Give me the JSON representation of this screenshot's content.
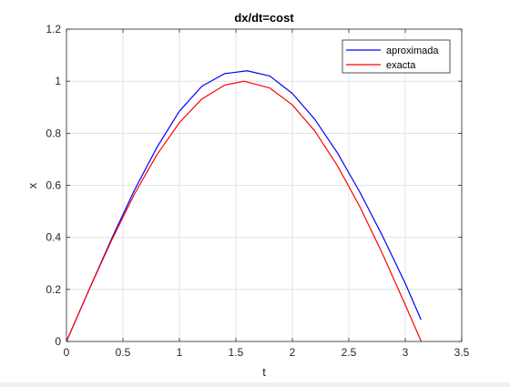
{
  "chart_data": {
    "type": "line",
    "title": "dx/dt=cost",
    "xlabel": "t",
    "ylabel": "x",
    "xlim": [
      0,
      3.5
    ],
    "ylim": [
      0,
      1.2
    ],
    "xticks": [
      0,
      0.5,
      1,
      1.5,
      2,
      2.5,
      3,
      3.5
    ],
    "yticks": [
      0,
      0.2,
      0.4,
      0.6,
      0.8,
      1,
      1.2
    ],
    "xtick_labels": [
      "0",
      "0.5",
      "1",
      "1.5",
      "2",
      "2.5",
      "3",
      "3.5"
    ],
    "ytick_labels": [
      "0",
      "0.2",
      "0.4",
      "0.6",
      "0.8",
      "1",
      "1.2"
    ],
    "grid": true,
    "legend_position": "top-right",
    "series": [
      {
        "name": "aproximada",
        "color": "#0000ff",
        "x": [
          0,
          0.2,
          0.4,
          0.6,
          0.8,
          1.0,
          1.2,
          1.4,
          1.6,
          1.8,
          2.0,
          2.2,
          2.4,
          2.6,
          2.8,
          3.0,
          3.14
        ],
        "y": [
          0,
          0.199,
          0.395,
          0.58,
          0.745,
          0.885,
          0.981,
          1.029,
          1.04,
          1.02,
          0.953,
          0.853,
          0.724,
          0.572,
          0.404,
          0.223,
          0.083
        ]
      },
      {
        "name": "exacta",
        "color": "#ff0000",
        "x": [
          0,
          0.2,
          0.4,
          0.6,
          0.8,
          1.0,
          1.2,
          1.4,
          1.5708,
          1.8,
          2.0,
          2.2,
          2.4,
          2.6,
          2.8,
          3.0,
          3.1416
        ],
        "y": [
          0,
          0.199,
          0.389,
          0.565,
          0.717,
          0.841,
          0.932,
          0.985,
          1.0,
          0.974,
          0.909,
          0.808,
          0.675,
          0.516,
          0.335,
          0.141,
          0
        ]
      }
    ]
  }
}
